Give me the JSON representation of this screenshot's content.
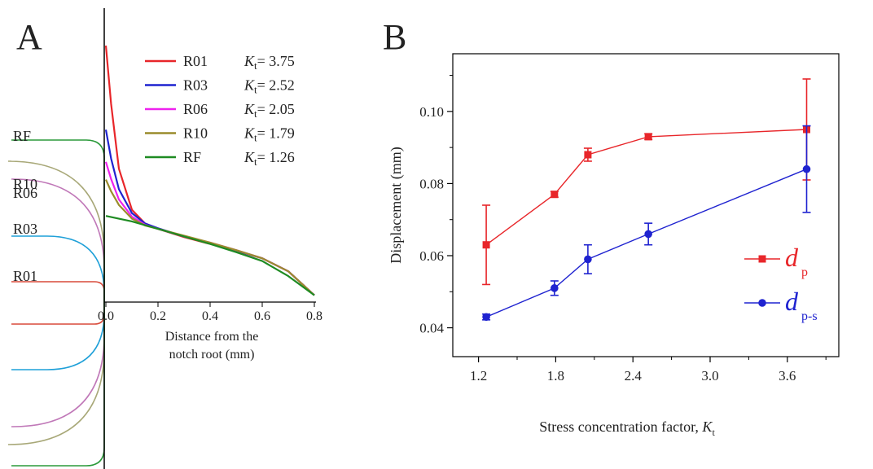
{
  "panels": {
    "a_label": "A",
    "b_label": "B"
  },
  "colors": {
    "R01": "#e8262a",
    "R03": "#1f23d0",
    "R06": "#ee22ee",
    "R10": "#9a8c2c",
    "RF": "#1e8b22",
    "notch_R01": "#d84a3a",
    "notch_R03": "#1fa0d8",
    "notch_R06": "#c078b8",
    "notch_R10": "#a8a878",
    "notch_RF": "#2b9a3a",
    "dp": "#e8262a",
    "dps": "#1f23d0"
  },
  "panel_a": {
    "notch_labels": [
      "RF",
      "R10",
      "R06",
      "R03",
      "R01"
    ],
    "x_ticks": [
      "0.0",
      "0.2",
      "0.4",
      "0.6",
      "0.8"
    ],
    "xlabel_line1": "Distance from the",
    "xlabel_line2": "notch root (mm)",
    "legend": [
      {
        "name": "R01",
        "kt_prefix": "K",
        "kt_sub": "t",
        "kt_value": "= 3.75"
      },
      {
        "name": "R03",
        "kt_prefix": "K",
        "kt_sub": "t",
        "kt_value": "= 2.52"
      },
      {
        "name": "R06",
        "kt_prefix": "K",
        "kt_sub": "t",
        "kt_value": "= 2.05"
      },
      {
        "name": "R10",
        "kt_prefix": "K",
        "kt_sub": "t",
        "kt_value": "= 1.79"
      },
      {
        "name": "RF",
        "kt_prefix": "K",
        "kt_sub": "t",
        "kt_value": "= 1.26"
      }
    ]
  },
  "chart_data": [
    {
      "type": "line",
      "panel": "A",
      "xlabel": "Distance from the notch root (mm)",
      "ylabel": "",
      "xlim": [
        0,
        0.8
      ],
      "series": [
        {
          "name": "R01",
          "x": [
            0,
            0.02,
            0.05,
            0.1,
            0.15,
            0.2,
            0.3,
            0.4,
            0.5,
            0.6,
            0.7,
            0.8
          ],
          "y": [
            3.75,
            2.9,
            1.95,
            1.35,
            1.15,
            1.07,
            0.95,
            0.85,
            0.75,
            0.64,
            0.45,
            0.1
          ]
        },
        {
          "name": "R03",
          "x": [
            0,
            0.02,
            0.05,
            0.1,
            0.15,
            0.2,
            0.3,
            0.4,
            0.5,
            0.6,
            0.7,
            0.8
          ],
          "y": [
            2.52,
            2.1,
            1.65,
            1.3,
            1.15,
            1.08,
            0.96,
            0.86,
            0.75,
            0.64,
            0.45,
            0.1
          ]
        },
        {
          "name": "R06",
          "x": [
            0,
            0.02,
            0.05,
            0.1,
            0.15,
            0.2,
            0.3,
            0.4,
            0.5,
            0.6,
            0.7,
            0.8
          ],
          "y": [
            2.05,
            1.8,
            1.5,
            1.25,
            1.13,
            1.07,
            0.96,
            0.87,
            0.76,
            0.64,
            0.45,
            0.1
          ]
        },
        {
          "name": "R10",
          "x": [
            0,
            0.02,
            0.05,
            0.1,
            0.15,
            0.2,
            0.3,
            0.4,
            0.5,
            0.6,
            0.7,
            0.8
          ],
          "y": [
            1.79,
            1.62,
            1.42,
            1.22,
            1.12,
            1.07,
            0.97,
            0.87,
            0.76,
            0.64,
            0.45,
            0.1
          ]
        },
        {
          "name": "RF",
          "x": [
            0,
            0.1,
            0.2,
            0.3,
            0.4,
            0.5,
            0.6,
            0.7,
            0.8
          ],
          "y": [
            1.26,
            1.18,
            1.07,
            0.96,
            0.85,
            0.73,
            0.6,
            0.38,
            0.1
          ]
        }
      ]
    },
    {
      "type": "line",
      "panel": "B",
      "xlabel": "Stress concentration factor, ",
      "xlabel_italic": "K",
      "xlabel_sub": "t",
      "ylabel": "Displacement (mm)",
      "xlim": [
        1.0,
        4.0
      ],
      "ylim": [
        0.032,
        0.116
      ],
      "x_ticks": [
        1.2,
        1.8,
        2.4,
        3.0,
        3.6
      ],
      "x_tick_labels": [
        "1.2",
        "1.8",
        "2.4",
        "3.0",
        "3.6"
      ],
      "y_ticks": [
        0.04,
        0.06,
        0.08,
        0.1
      ],
      "y_tick_labels": [
        "0.04",
        "0.06",
        "0.08",
        "0.10"
      ],
      "legend_position": "right",
      "series": [
        {
          "name": "dp",
          "label_main": "d",
          "label_sub": "p",
          "marker": "square",
          "x": [
            1.26,
            1.79,
            2.05,
            2.52,
            3.75
          ],
          "y": [
            0.063,
            0.077,
            0.088,
            0.093,
            0.095
          ],
          "err": [
            0.011,
            0.0008,
            0.0018,
            0.0008,
            0.014
          ]
        },
        {
          "name": "dp-s",
          "label_main": "d",
          "label_sub": "p-s",
          "marker": "circle",
          "x": [
            1.26,
            1.79,
            2.05,
            2.52,
            3.75
          ],
          "y": [
            0.043,
            0.051,
            0.059,
            0.066,
            0.084
          ],
          "err": [
            0.0008,
            0.002,
            0.004,
            0.003,
            0.012
          ]
        }
      ]
    }
  ]
}
